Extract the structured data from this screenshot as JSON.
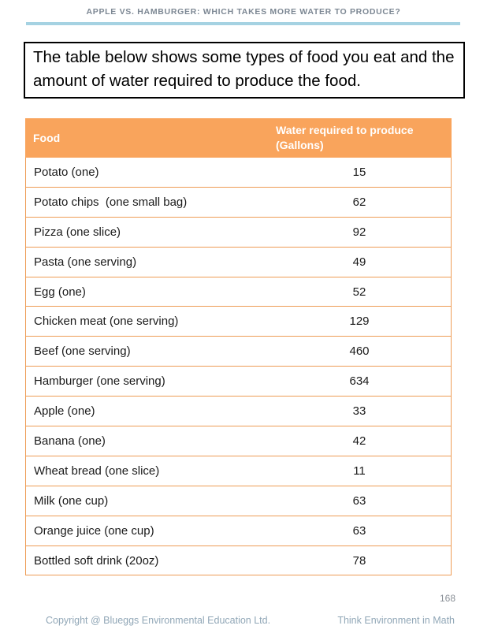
{
  "page": {
    "header_title": "APPLE VS. HAMBURGER: WHICH TAKES MORE WATER TO PRODUCE?",
    "intro_text": "The table below shows some types of food you eat and the amount of water required to produce the food.",
    "page_number": "168",
    "footer_left": "Copyright @ Blueggs Environmental Education Ltd.",
    "footer_right": "Think Environment in Math"
  },
  "table": {
    "columns": {
      "food": "Food",
      "water": "Water required to produce (Gallons)"
    },
    "rows": [
      {
        "food": "Potato (one)",
        "gallons": "15"
      },
      {
        "food": "Potato chips  (one small bag)",
        "gallons": "62"
      },
      {
        "food": "Pizza (one slice)",
        "gallons": "92"
      },
      {
        "food": "Pasta (one serving)",
        "gallons": "49"
      },
      {
        "food": "Egg (one)",
        "gallons": "52"
      },
      {
        "food": "Chicken meat (one serving)",
        "gallons": "129"
      },
      {
        "food": "Beef (one serving)",
        "gallons": "460"
      },
      {
        "food": "Hamburger (one serving)",
        "gallons": "634"
      },
      {
        "food": "Apple (one)",
        "gallons": "33"
      },
      {
        "food": "Banana (one)",
        "gallons": "42"
      },
      {
        "food": "Wheat bread (one slice)",
        "gallons": "11"
      },
      {
        "food": "Milk (one cup)",
        "gallons": "63"
      },
      {
        "food": "Orange juice (one cup)",
        "gallons": "63"
      },
      {
        "food": "Bottled soft drink (20oz)",
        "gallons": "78"
      }
    ]
  },
  "colors": {
    "header_text": "#7c8793",
    "header_rule_blue": "#a5d2e2",
    "table_header_bg": "#f9a45c",
    "table_border_orange": "#ee9c55",
    "table_header_text": "#ffffff",
    "body_text": "#1a1a1a",
    "footer_text": "#91a7b7",
    "page_number_text": "#8a9097"
  }
}
